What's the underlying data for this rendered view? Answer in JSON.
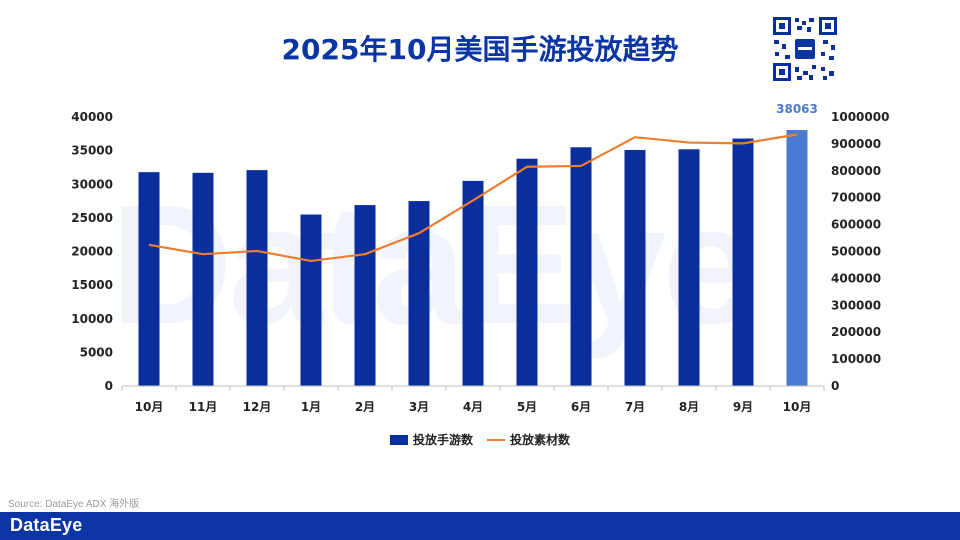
{
  "watermark": "DataEye",
  "title": "2025年10月美国手游投放趋势",
  "legend": {
    "bar_label": "投放手游数",
    "line_label": "投放素材数"
  },
  "source": "Source: DataEye ADX 海外版",
  "footer": {
    "logo": "DataEye"
  },
  "colors": {
    "bar": "#0a2f9c",
    "bar_highlight": "#4a7bd0",
    "line": "#ed7d31",
    "title": "#0a35a3",
    "footer": "#0a35a3"
  },
  "icons": {
    "qr": "qr-code-icon"
  },
  "chart_data": {
    "type": "bar",
    "categories": [
      "10月",
      "11月",
      "12月",
      "1月",
      "2月",
      "3月",
      "4月",
      "5月",
      "6月",
      "7月",
      "8月",
      "9月",
      "10月"
    ],
    "series": [
      {
        "name": "投放手游数",
        "type": "bar",
        "axis": "left",
        "values": [
          31800,
          31700,
          32100,
          25500,
          26900,
          27500,
          30500,
          33800,
          35500,
          35100,
          35200,
          36800,
          38063
        ]
      },
      {
        "name": "投放素材数",
        "type": "line",
        "axis": "right",
        "values": [
          525000,
          490000,
          502000,
          465000,
          490000,
          568000,
          690000,
          815000,
          818000,
          925000,
          905000,
          902000,
          935000
        ]
      }
    ],
    "data_labels": [
      {
        "index": 12,
        "series": 0,
        "text": "38063"
      }
    ],
    "y_left": {
      "min": 0,
      "max": 40000,
      "ticks": [
        "0",
        "5000",
        "10000",
        "15000",
        "20000",
        "25000",
        "30000",
        "35000",
        "40000"
      ]
    },
    "y_right": {
      "min": 0,
      "max": 1000000,
      "ticks": [
        "0",
        "100000",
        "200000",
        "300000",
        "400000",
        "500000",
        "600000",
        "700000",
        "800000",
        "900000",
        "1000000"
      ]
    },
    "highlight_index": 12,
    "grid": false,
    "legend_position": "bottom"
  }
}
